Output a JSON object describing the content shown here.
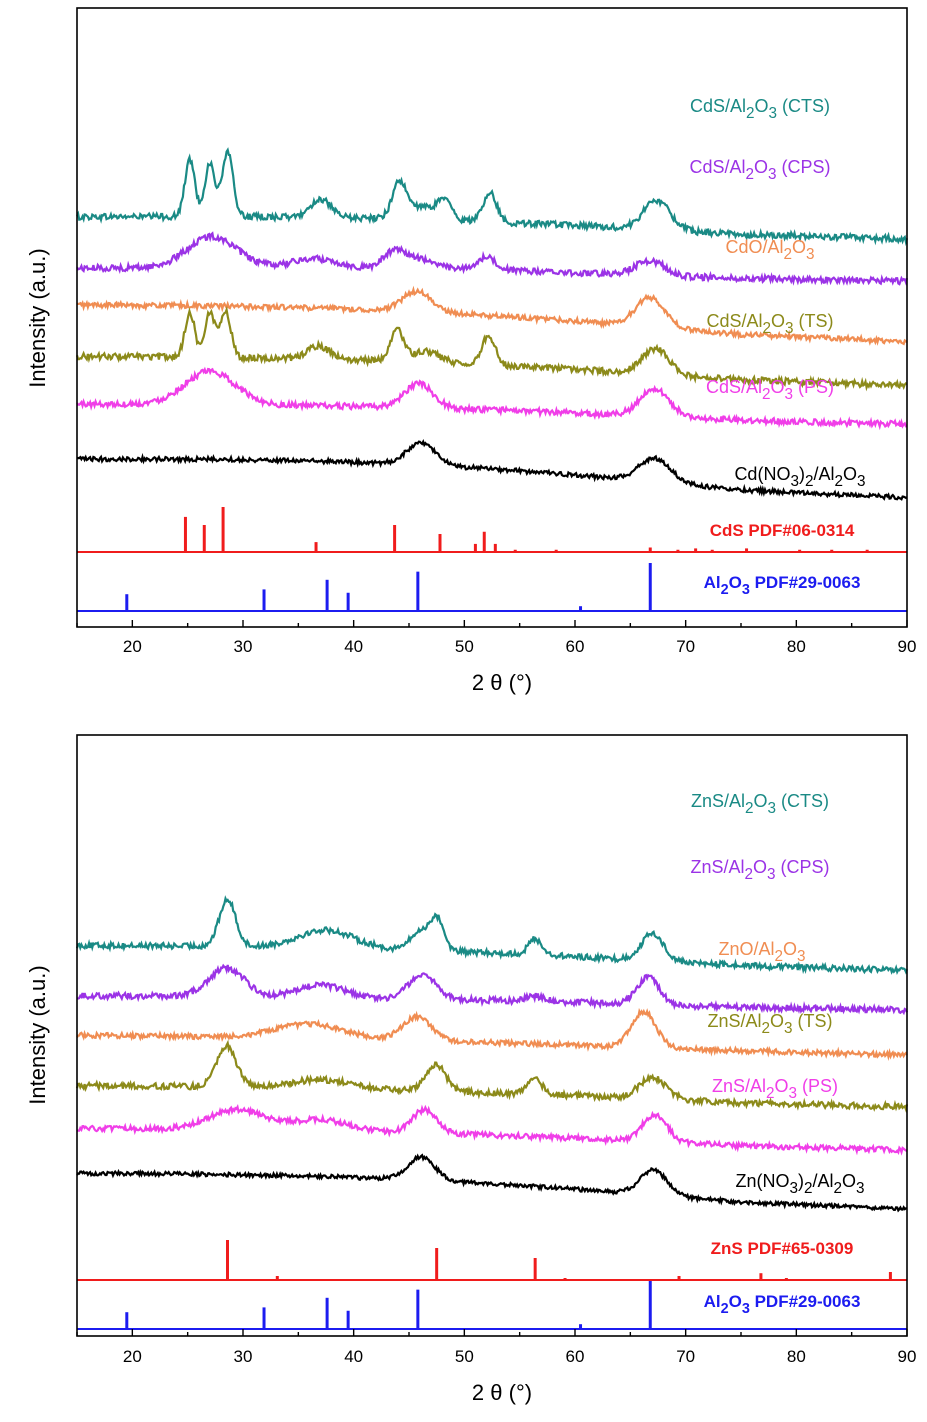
{
  "colors": {
    "teal": "#1a8a85",
    "purple": "#9b33e6",
    "orange": "#f08d52",
    "olive": "#8c8a1a",
    "magenta": "#f03ee8",
    "black": "#000000",
    "red": "#f01c1c",
    "blue": "#1c1cf0"
  },
  "chart_data": [
    {
      "type": "line",
      "panel": "top",
      "xlabel": "2 θ (°)",
      "ylabel": "Intensity (a.u.)",
      "xlim": [
        15,
        90
      ],
      "xticks": [
        20,
        30,
        40,
        50,
        60,
        70,
        80,
        90
      ],
      "series": [
        {
          "name": "CdS/Al2O3 (CTS)",
          "label": {
            "pre": "CdS/Al",
            "s1": "2",
            "mid": "O",
            "s2": "3",
            "post": " (CTS)"
          },
          "color": "#1a8a85",
          "baseline": 7.25,
          "start": 7.55,
          "end": 6.95,
          "rise": 0.35,
          "noise": 0.17,
          "peaks": [
            [
              25.2,
              1.55,
              0.45
            ],
            [
              27.0,
              1.45,
              0.45
            ],
            [
              28.6,
              1.75,
              0.5
            ],
            [
              37.0,
              0.5,
              0.9
            ],
            [
              44.1,
              0.9,
              0.6
            ],
            [
              48.2,
              0.5,
              0.6
            ],
            [
              52.3,
              0.8,
              0.6
            ],
            [
              46.0,
              0.35,
              1.5
            ],
            [
              67.4,
              0.8,
              1.2
            ]
          ]
        },
        {
          "name": "CdS/Al2O3 (CPS)",
          "label": {
            "pre": "CdS/Al",
            "s1": "2",
            "mid": "O",
            "s2": "3",
            "post": " (CPS)"
          },
          "color": "#9b33e6",
          "baseline": 6.05,
          "start": 6.15,
          "end": 5.8,
          "rise": 0.25,
          "noise": 0.17,
          "peaks": [
            [
              27.2,
              0.85,
              2.2
            ],
            [
              36.5,
              0.25,
              2.0
            ],
            [
              43.7,
              0.45,
              1.0
            ],
            [
              46.0,
              0.25,
              1.5
            ],
            [
              52.0,
              0.35,
              0.9
            ],
            [
              66.8,
              0.4,
              1.3
            ]
          ]
        },
        {
          "name": "CdO/Al2O3",
          "label": {
            "pre": "CdO/Al",
            "s1": "2",
            "mid": "O",
            "s2": "3",
            "post": ""
          },
          "color": "#f08d52",
          "baseline": 4.9,
          "start": 5.15,
          "end": 4.15,
          "rise": 0.45,
          "noise": 0.14,
          "peaks": [
            [
              45.7,
              0.55,
              1.3
            ],
            [
              66.8,
              0.8,
              1.3
            ]
          ]
        },
        {
          "name": "CdS/Al2O3 (TS)",
          "label": {
            "pre": "CdS/Al",
            "s1": "2",
            "mid": "O",
            "s2": "3",
            "post": " (TS)"
          },
          "color": "#8c8a1a",
          "baseline": 3.55,
          "start": 3.75,
          "end": 2.95,
          "rise": 0.35,
          "noise": 0.17,
          "peaks": [
            [
              25.2,
              1.2,
              0.45
            ],
            [
              27.0,
              1.2,
              0.45
            ],
            [
              28.4,
              1.25,
              0.5
            ],
            [
              36.8,
              0.35,
              1.0
            ],
            [
              43.9,
              0.85,
              0.6
            ],
            [
              46.5,
              0.3,
              1.2
            ],
            [
              52.2,
              0.8,
              0.6
            ],
            [
              67.3,
              0.7,
              1.2
            ]
          ]
        },
        {
          "name": "CdS/Al2O3 (PS)",
          "label": {
            "pre": "CdS/Al",
            "s1": "2",
            "mid": "O",
            "s2": "3",
            "post": " (PS)"
          },
          "color": "#f03ee8",
          "baseline": 2.3,
          "start": 2.45,
          "end": 1.9,
          "rise": 0.25,
          "noise": 0.16,
          "peaks": [
            [
              27.0,
              0.9,
              2.3
            ],
            [
              45.9,
              0.65,
              1.3
            ],
            [
              67.2,
              0.75,
              1.3
            ]
          ]
        },
        {
          "name": "Cd(NO3)2/Al2O3",
          "label": {
            "pre": "Cd(NO",
            "s1": "3",
            "mid": ")",
            "s2": "2",
            "post": "/Al",
            "s3": "2",
            "mid2": "O",
            "s4": "3"
          },
          "color": "#000000",
          "baseline": 0.85,
          "start": 0.95,
          "end": -0.1,
          "rise": 0.55,
          "noise": 0.12,
          "peaks": [
            [
              46.1,
              0.6,
              1.3
            ],
            [
              67.2,
              0.65,
              1.4
            ]
          ]
        }
      ],
      "references": [
        {
          "name": "CdS PDF#06-0314",
          "label": {
            "pre": "CdS PDF#06-0314"
          },
          "color": "#f01c1c",
          "lines": [
            [
              24.8,
              0.78
            ],
            [
              26.5,
              0.6
            ],
            [
              28.2,
              1.0
            ],
            [
              36.6,
              0.22
            ],
            [
              43.7,
              0.6
            ],
            [
              47.8,
              0.4
            ],
            [
              51.0,
              0.18
            ],
            [
              51.8,
              0.45
            ],
            [
              52.8,
              0.18
            ],
            [
              54.6,
              0.05
            ],
            [
              58.3,
              0.05
            ],
            [
              66.8,
              0.1
            ],
            [
              69.3,
              0.05
            ],
            [
              70.9,
              0.08
            ],
            [
              72.4,
              0.05
            ],
            [
              75.5,
              0.08
            ],
            [
              80.3,
              0.05
            ],
            [
              83.2,
              0.05
            ],
            [
              86.4,
              0.05
            ]
          ]
        },
        {
          "name": "Al2O3 PDF#29-0063",
          "label": {
            "pre": "Al",
            "s1": "2",
            "mid": "O",
            "s2": "3",
            "post": " PDF#29-0063"
          },
          "color": "#1c1cf0",
          "lines": [
            [
              19.5,
              0.35
            ],
            [
              31.9,
              0.45
            ],
            [
              37.6,
              0.65
            ],
            [
              39.5,
              0.38
            ],
            [
              45.8,
              0.82
            ],
            [
              60.5,
              0.1
            ],
            [
              66.8,
              1.0
            ]
          ]
        }
      ]
    },
    {
      "type": "line",
      "panel": "bottom",
      "xlabel": "2 θ (°)",
      "ylabel": "Intensity (a.u.)",
      "xlim": [
        15,
        90
      ],
      "xticks": [
        20,
        30,
        40,
        50,
        60,
        70,
        80,
        90
      ],
      "series": [
        {
          "name": "ZnS/Al2O3 (CTS)",
          "label": {
            "pre": "ZnS/Al",
            "s1": "2",
            "mid": "O",
            "s2": "3",
            "post": " (CTS)"
          },
          "color": "#1a8a85",
          "baseline": 7.2,
          "start": 7.35,
          "end": 6.65,
          "rise": 0.3,
          "noise": 0.16,
          "peaks": [
            [
              28.6,
              1.3,
              0.75
            ],
            [
              37.5,
              0.5,
              2.5
            ],
            [
              46.2,
              0.55,
              1.0
            ],
            [
              47.6,
              0.75,
              0.6
            ],
            [
              56.4,
              0.45,
              0.6
            ],
            [
              67.0,
              0.75,
              1.0
            ]
          ]
        },
        {
          "name": "ZnS/Al2O3 (CPS)",
          "label": {
            "pre": "ZnS/Al",
            "s1": "2",
            "mid": "O",
            "s2": "3",
            "post": " (CPS)"
          },
          "color": "#9b33e6",
          "baseline": 5.95,
          "start": 5.95,
          "end": 5.55,
          "rise": 0.15,
          "noise": 0.17,
          "peaks": [
            [
              28.5,
              0.8,
              1.6
            ],
            [
              37.0,
              0.35,
              2.0
            ],
            [
              46.2,
              0.7,
              1.2
            ],
            [
              56.5,
              0.15,
              0.8
            ],
            [
              66.6,
              0.75,
              1.0
            ]
          ]
        },
        {
          "name": "ZnO/Al2O3",
          "label": {
            "pre": "ZnO/Al",
            "s1": "2",
            "mid": "O",
            "s2": "3",
            "post": ""
          },
          "color": "#f08d52",
          "baseline": 4.75,
          "start": 4.85,
          "end": 4.3,
          "rise": 0.15,
          "noise": 0.14,
          "peaks": [
            [
              36.0,
              0.4,
              3.0
            ],
            [
              45.7,
              0.65,
              1.3
            ],
            [
              66.2,
              1.0,
              1.1
            ]
          ]
        },
        {
          "name": "ZnS/Al2O3 (TS)",
          "label": {
            "pre": "ZnS/Al",
            "s1": "2",
            "mid": "O",
            "s2": "3",
            "post": " (TS)"
          },
          "color": "#8c8a1a",
          "baseline": 3.4,
          "start": 3.45,
          "end": 2.85,
          "rise": 0.2,
          "noise": 0.17,
          "peaks": [
            [
              28.5,
              1.15,
              0.9
            ],
            [
              37.0,
              0.25,
              2.5
            ],
            [
              47.4,
              0.75,
              0.9
            ],
            [
              56.4,
              0.4,
              0.7
            ],
            [
              67.0,
              0.6,
              1.2
            ]
          ]
        },
        {
          "name": "ZnS/Al2O3 (PS)",
          "label": {
            "pre": "ZnS/Al",
            "s1": "2",
            "mid": "O",
            "s2": "3",
            "post": " (PS)"
          },
          "color": "#f03ee8",
          "baseline": 2.2,
          "start": 2.25,
          "end": 1.65,
          "rise": 0.25,
          "noise": 0.15,
          "peaks": [
            [
              29.5,
              0.55,
              2.5
            ],
            [
              37.0,
              0.3,
              2.5
            ],
            [
              46.4,
              0.65,
              1.1
            ],
            [
              67.2,
              0.75,
              1.1
            ]
          ]
        },
        {
          "name": "Zn(NO3)2/Al2O3",
          "label": {
            "pre": "Zn(NO",
            "s1": "3",
            "mid": ")",
            "s2": "2",
            "post": "/Al",
            "s3": "2",
            "mid2": "O",
            "s4": "3"
          },
          "color": "#000000",
          "baseline": 0.85,
          "start": 1.0,
          "end": 0.0,
          "rise": 0.45,
          "noise": 0.11,
          "peaks": [
            [
              46.1,
              0.65,
              1.2
            ],
            [
              67.1,
              0.7,
              1.2
            ]
          ]
        }
      ],
      "references": [
        {
          "name": "ZnS PDF#65-0309",
          "label": {
            "pre": "ZnS PDF#65-0309"
          },
          "color": "#f01c1c",
          "lines": [
            [
              28.6,
              1.0
            ],
            [
              33.1,
              0.1
            ],
            [
              47.5,
              0.8
            ],
            [
              56.4,
              0.55
            ],
            [
              59.1,
              0.05
            ],
            [
              69.4,
              0.1
            ],
            [
              76.8,
              0.17
            ],
            [
              79.1,
              0.05
            ],
            [
              88.5,
              0.2
            ]
          ]
        },
        {
          "name": "Al2O3 PDF#29-0063",
          "label": {
            "pre": "Al",
            "s1": "2",
            "mid": "O",
            "s2": "3",
            "post": " PDF#29-0063"
          },
          "color": "#1c1cf0",
          "lines": [
            [
              19.5,
              0.35
            ],
            [
              31.9,
              0.45
            ],
            [
              37.6,
              0.65
            ],
            [
              39.5,
              0.38
            ],
            [
              45.8,
              0.82
            ],
            [
              60.5,
              0.1
            ],
            [
              66.8,
              1.0
            ]
          ]
        }
      ]
    }
  ]
}
